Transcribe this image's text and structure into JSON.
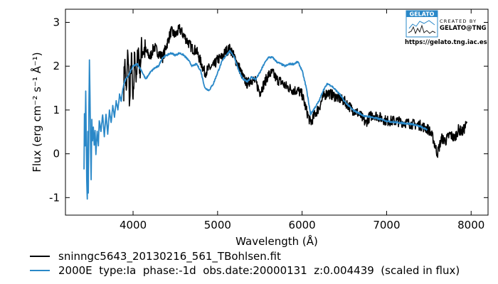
{
  "chart_data": {
    "type": "line",
    "xlabel": "Wavelength (Å)",
    "ylabel": "Flux (erg cm⁻² s⁻¹ Å⁻¹)",
    "xlim": [
      3200,
      8200
    ],
    "ylim": [
      -1.4,
      3.3
    ],
    "xticks": [
      4000,
      5000,
      6000,
      7000,
      8000
    ],
    "yticks": [
      -1,
      0,
      1,
      2,
      3
    ],
    "grid": false,
    "legend_position": "bottom",
    "series": [
      {
        "name": "sninngc5643_20130216_561_TBohlsen.fit",
        "color": "#000000",
        "noise": 0.12,
        "points": [
          [
            3890,
            1.5
          ],
          [
            3900,
            2.2
          ],
          [
            3920,
            1.3
          ],
          [
            3940,
            2.4
          ],
          [
            3960,
            1.1
          ],
          [
            3980,
            2.3
          ],
          [
            4000,
            1.0
          ],
          [
            4020,
            2.4
          ],
          [
            4040,
            1.6
          ],
          [
            4060,
            2.5
          ],
          [
            4080,
            1.9
          ],
          [
            4100,
            2.4
          ],
          [
            4150,
            2.35
          ],
          [
            4200,
            2.2
          ],
          [
            4250,
            2.45
          ],
          [
            4300,
            2.3
          ],
          [
            4350,
            2.2
          ],
          [
            4400,
            2.5
          ],
          [
            4450,
            2.8
          ],
          [
            4500,
            2.7
          ],
          [
            4550,
            2.85
          ],
          [
            4600,
            2.7
          ],
          [
            4650,
            2.55
          ],
          [
            4700,
            2.4
          ],
          [
            4750,
            2.35
          ],
          [
            4800,
            2.1
          ],
          [
            4850,
            1.85
          ],
          [
            4900,
            1.95
          ],
          [
            4950,
            2.0
          ],
          [
            5000,
            2.15
          ],
          [
            5050,
            2.2
          ],
          [
            5100,
            2.35
          ],
          [
            5150,
            2.4
          ],
          [
            5200,
            2.2
          ],
          [
            5250,
            2.0
          ],
          [
            5300,
            1.75
          ],
          [
            5350,
            1.6
          ],
          [
            5400,
            1.7
          ],
          [
            5450,
            1.65
          ],
          [
            5500,
            1.4
          ],
          [
            5550,
            1.6
          ],
          [
            5600,
            1.8
          ],
          [
            5650,
            1.85
          ],
          [
            5700,
            1.7
          ],
          [
            5750,
            1.65
          ],
          [
            5800,
            1.55
          ],
          [
            5850,
            1.5
          ],
          [
            5900,
            1.45
          ],
          [
            5950,
            1.45
          ],
          [
            6000,
            1.35
          ],
          [
            6050,
            1.0
          ],
          [
            6100,
            0.7
          ],
          [
            6150,
            0.9
          ],
          [
            6200,
            1.05
          ],
          [
            6250,
            1.3
          ],
          [
            6300,
            1.4
          ],
          [
            6350,
            1.35
          ],
          [
            6400,
            1.3
          ],
          [
            6450,
            1.25
          ],
          [
            6500,
            1.2
          ],
          [
            6550,
            1.1
          ],
          [
            6600,
            1.0
          ],
          [
            6650,
            0.95
          ],
          [
            6700,
            0.85
          ],
          [
            6750,
            0.7
          ],
          [
            6800,
            0.85
          ],
          [
            6850,
            0.9
          ],
          [
            6900,
            0.85
          ],
          [
            6950,
            0.8
          ],
          [
            7000,
            0.75
          ],
          [
            7100,
            0.75
          ],
          [
            7200,
            0.72
          ],
          [
            7300,
            0.68
          ],
          [
            7400,
            0.65
          ],
          [
            7500,
            0.55
          ],
          [
            7550,
            0.35
          ],
          [
            7600,
            0.0
          ],
          [
            7650,
            0.35
          ],
          [
            7700,
            0.3
          ],
          [
            7750,
            0.45
          ],
          [
            7800,
            0.35
          ],
          [
            7850,
            0.55
          ],
          [
            7900,
            0.5
          ],
          [
            7950,
            0.7
          ]
        ]
      },
      {
        "name": "2000E  type:Ia  phase:-1d  obs.date:20000131  z:0.004439  (scaled in flux)",
        "color": "#2a88c8",
        "noise": 0.02,
        "points": [
          [
            3420,
            -0.35
          ],
          [
            3425,
            0.9
          ],
          [
            3432,
            0.2
          ],
          [
            3440,
            1.45
          ],
          [
            3446,
            0.3
          ],
          [
            3452,
            -0.6
          ],
          [
            3458,
            -1.05
          ],
          [
            3464,
            0.5
          ],
          [
            3470,
            -0.9
          ],
          [
            3478,
            1.1
          ],
          [
            3484,
            2.15
          ],
          [
            3490,
            1.3
          ],
          [
            3497,
            0.2
          ],
          [
            3504,
            -0.6
          ],
          [
            3512,
            0.8
          ],
          [
            3520,
            0.3
          ],
          [
            3530,
            0.6
          ],
          [
            3540,
            0.2
          ],
          [
            3550,
            0.55
          ],
          [
            3560,
            0.0
          ],
          [
            3575,
            0.5
          ],
          [
            3590,
            0.2
          ],
          [
            3600,
            0.75
          ],
          [
            3620,
            0.5
          ],
          [
            3640,
            0.9
          ],
          [
            3660,
            0.4
          ],
          [
            3680,
            0.9
          ],
          [
            3700,
            0.45
          ],
          [
            3720,
            1.0
          ],
          [
            3740,
            0.7
          ],
          [
            3760,
            1.1
          ],
          [
            3780,
            0.85
          ],
          [
            3800,
            1.2
          ],
          [
            3820,
            1.0
          ],
          [
            3840,
            1.35
          ],
          [
            3860,
            1.2
          ],
          [
            3880,
            1.5
          ],
          [
            3900,
            1.65
          ],
          [
            3950,
            1.8
          ],
          [
            4000,
            2.0
          ],
          [
            4050,
            2.05
          ],
          [
            4100,
            1.9
          ],
          [
            4150,
            1.7
          ],
          [
            4200,
            1.85
          ],
          [
            4250,
            1.95
          ],
          [
            4300,
            2.0
          ],
          [
            4350,
            2.2
          ],
          [
            4400,
            2.25
          ],
          [
            4450,
            2.3
          ],
          [
            4500,
            2.25
          ],
          [
            4550,
            2.3
          ],
          [
            4600,
            2.25
          ],
          [
            4650,
            2.15
          ],
          [
            4700,
            2.0
          ],
          [
            4750,
            2.05
          ],
          [
            4800,
            1.9
          ],
          [
            4850,
            1.5
          ],
          [
            4900,
            1.45
          ],
          [
            4950,
            1.6
          ],
          [
            5000,
            1.85
          ],
          [
            5050,
            2.1
          ],
          [
            5100,
            2.25
          ],
          [
            5150,
            2.35
          ],
          [
            5200,
            2.2
          ],
          [
            5250,
            1.9
          ],
          [
            5300,
            1.7
          ],
          [
            5350,
            1.65
          ],
          [
            5400,
            1.75
          ],
          [
            5450,
            1.7
          ],
          [
            5500,
            1.85
          ],
          [
            5550,
            2.05
          ],
          [
            5600,
            2.2
          ],
          [
            5650,
            2.2
          ],
          [
            5700,
            2.1
          ],
          [
            5750,
            2.05
          ],
          [
            5800,
            2.0
          ],
          [
            5850,
            2.05
          ],
          [
            5900,
            2.05
          ],
          [
            5950,
            2.1
          ],
          [
            6000,
            1.9
          ],
          [
            6050,
            1.5
          ],
          [
            6100,
            0.9
          ],
          [
            6150,
            1.05
          ],
          [
            6200,
            1.2
          ],
          [
            6250,
            1.45
          ],
          [
            6300,
            1.6
          ],
          [
            6350,
            1.55
          ],
          [
            6400,
            1.45
          ],
          [
            6450,
            1.35
          ],
          [
            6500,
            1.2
          ],
          [
            6550,
            1.1
          ],
          [
            6600,
            1.0
          ],
          [
            6650,
            0.95
          ],
          [
            6700,
            0.9
          ],
          [
            6750,
            0.85
          ],
          [
            6800,
            0.85
          ],
          [
            6850,
            0.82
          ],
          [
            6900,
            0.8
          ],
          [
            6950,
            0.78
          ],
          [
            7000,
            0.75
          ],
          [
            7100,
            0.72
          ],
          [
            7200,
            0.7
          ],
          [
            7300,
            0.68
          ],
          [
            7400,
            0.62
          ],
          [
            7480,
            0.55
          ]
        ]
      }
    ]
  },
  "watermark": {
    "badge": "GELATO",
    "created_by": "CREATED BY",
    "org": "GELATO@TNG",
    "url": "https://gelato.tng.iac.es"
  }
}
